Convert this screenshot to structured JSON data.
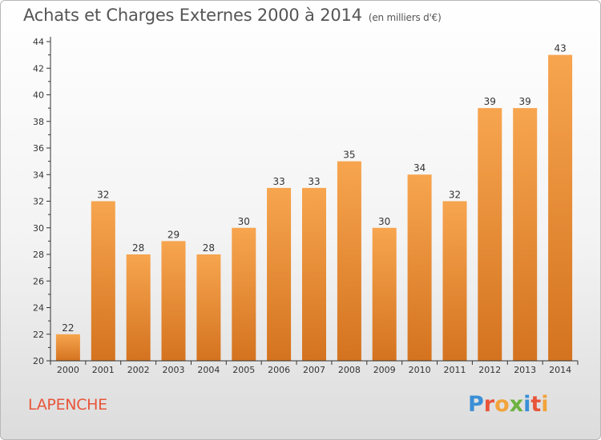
{
  "header": {
    "title": "Achats et Charges Externes 2000 à 2014",
    "subtitle": "(en milliers d'€)"
  },
  "commune": "LAPENCHE",
  "logo": {
    "text": "Proxiti",
    "letter_colors": [
      "#3a8fd6",
      "#e8553a",
      "#f2a33a",
      "#6cb33f",
      "#3a8fd6",
      "#e8553a",
      "#f2a33a"
    ]
  },
  "colors": {
    "bar_top": "#f7a54f",
    "bar_bottom": "#d4731f",
    "axis": "#333333",
    "grid": "#cccccc"
  },
  "chart_data": {
    "type": "bar",
    "categories": [
      "2000",
      "2001",
      "2002",
      "2003",
      "2004",
      "2005",
      "2006",
      "2007",
      "2008",
      "2009",
      "2010",
      "2011",
      "2012",
      "2013",
      "2014"
    ],
    "values": [
      22,
      32,
      28,
      29,
      28,
      30,
      33,
      33,
      35,
      30,
      34,
      32,
      39,
      39,
      43
    ],
    "ylim": [
      20,
      44
    ],
    "yticks": [
      20,
      22,
      24,
      26,
      28,
      30,
      32,
      34,
      36,
      38,
      40,
      42,
      44
    ],
    "title": "Achats et Charges Externes 2000 à 2014",
    "xlabel": "",
    "ylabel": "",
    "grid": false
  }
}
